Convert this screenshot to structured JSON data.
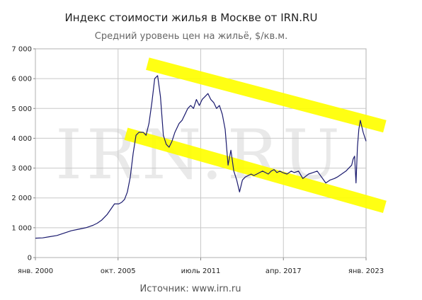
{
  "chart_data": {
    "type": "line",
    "title": "Индекс стоимости жилья в Москве от IRN.RU",
    "subtitle": "Средний уровень цен на жильё, $/кв.м.",
    "source": "Источник: www.irn.ru",
    "watermark": "IRN.RU",
    "xlim": [
      2000.0,
      2023.0
    ],
    "ylim": [
      0,
      7000
    ],
    "yticks": [
      0,
      1000,
      2000,
      3000,
      4000,
      5000,
      6000,
      7000
    ],
    "ytick_labels": [
      "0",
      "1 000",
      "2 000",
      "3 000",
      "4 000",
      "5 000",
      "6 000",
      "7 000"
    ],
    "xticks": [
      {
        "value": 2000.0,
        "label": "янв. 2000"
      },
      {
        "value": 2005.75,
        "label": "окт. 2005"
      },
      {
        "value": 2011.5,
        "label": "июль 2011"
      },
      {
        "value": 2017.25,
        "label": "апр. 2017"
      },
      {
        "value": 2023.0,
        "label": "янв. 2023"
      }
    ],
    "grid": true,
    "line_color": "#1a1a6e",
    "highlight_color": "#ffff00",
    "highlight_bands": [
      {
        "from": [
          2007.8,
          6500
        ],
        "to": [
          2024.3,
          4400
        ]
      },
      {
        "from": [
          2006.3,
          4150
        ],
        "to": [
          2024.3,
          1700
        ]
      }
    ],
    "series": [
      {
        "x": [
          2000.0,
          2000.5,
          2001.0,
          2001.5,
          2002.0,
          2002.5,
          2003.0,
          2003.5,
          2004.0,
          2004.3,
          2004.6,
          2005.0,
          2005.5,
          2005.8,
          2006.0,
          2006.2,
          2006.4,
          2006.6,
          2006.8,
          2007.0,
          2007.2,
          2007.5,
          2007.7,
          2007.9,
          2008.1,
          2008.3,
          2008.5,
          2008.7,
          2008.9,
          2009.1,
          2009.3,
          2009.5,
          2009.7,
          2010.0,
          2010.2,
          2010.4,
          2010.6,
          2010.8,
          2011.0,
          2011.2,
          2011.4,
          2011.6,
          2011.8,
          2012.0,
          2012.2,
          2012.4,
          2012.6,
          2012.8,
          2013.0,
          2013.2,
          2013.4,
          2013.6,
          2013.8,
          2014.0,
          2014.2,
          2014.4,
          2014.6,
          2014.8,
          2015.0,
          2015.2,
          2015.4,
          2015.6,
          2015.8,
          2016.0,
          2016.2,
          2016.4,
          2016.6,
          2016.8,
          2017.0,
          2017.2,
          2017.5,
          2017.8,
          2018.0,
          2018.3,
          2018.6,
          2019.0,
          2019.3,
          2019.6,
          2019.9,
          2020.2,
          2020.5,
          2020.8,
          2021.0,
          2021.3,
          2021.6,
          2021.8,
          2022.0,
          2022.1,
          2022.2,
          2022.3,
          2022.4,
          2022.5,
          2022.6,
          2022.7,
          2022.8,
          2023.0
        ],
        "values": [
          650,
          660,
          700,
          740,
          820,
          900,
          950,
          1000,
          1080,
          1150,
          1250,
          1450,
          1800,
          1800,
          1850,
          1950,
          2200,
          2700,
          3500,
          4100,
          4200,
          4200,
          4100,
          4500,
          5200,
          6000,
          6100,
          5400,
          4100,
          3800,
          3700,
          3900,
          4200,
          4500,
          4600,
          4800,
          5000,
          5100,
          5000,
          5300,
          5100,
          5300,
          5400,
          5500,
          5300,
          5200,
          5000,
          5100,
          4800,
          4300,
          3100,
          3600,
          2900,
          2600,
          2200,
          2600,
          2700,
          2750,
          2800,
          2750,
          2800,
          2850,
          2900,
          2850,
          2800,
          2900,
          2950,
          2850,
          2900,
          2850,
          2800,
          2900,
          2850,
          2900,
          2650,
          2800,
          2850,
          2900,
          2700,
          2500,
          2600,
          2650,
          2700,
          2800,
          2900,
          3000,
          3100,
          3300,
          3400,
          2500,
          3700,
          4300,
          4600,
          4400,
          4200,
          3900
        ]
      }
    ]
  }
}
